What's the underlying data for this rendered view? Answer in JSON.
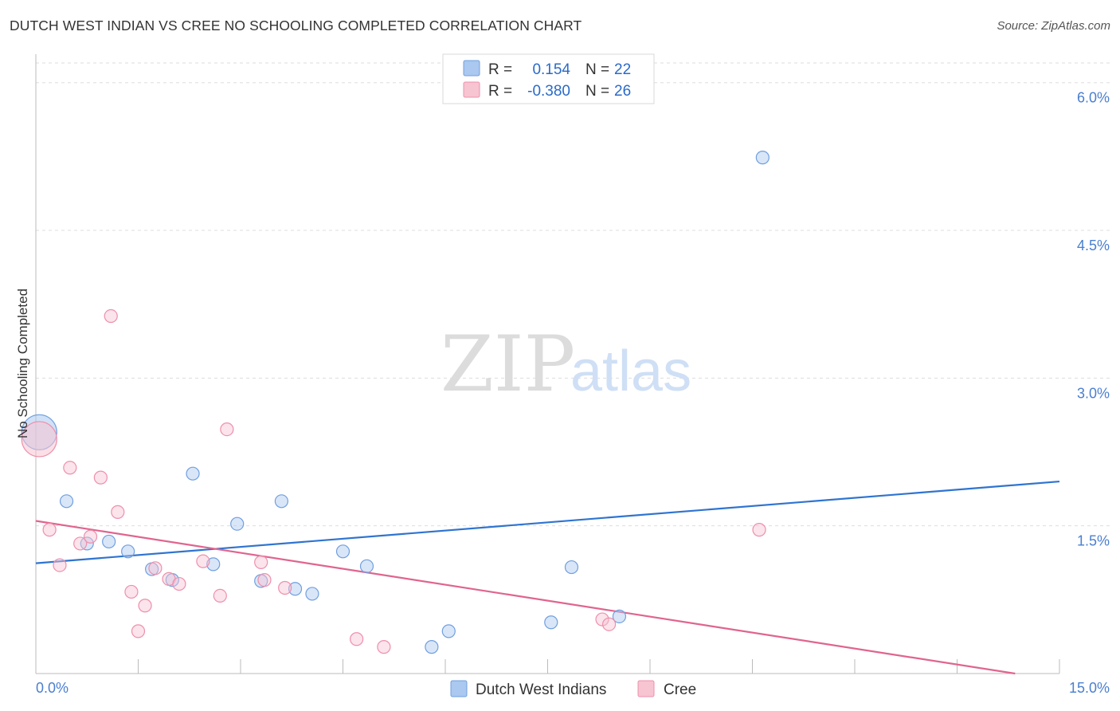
{
  "title": "DUTCH WEST INDIAN VS CREE NO SCHOOLING COMPLETED CORRELATION CHART",
  "source": "Source: ZipAtlas.com",
  "watermark": {
    "zip": "ZIP",
    "atlas": "atlas"
  },
  "legend_top": {
    "rows": [
      {
        "r_label": "R =",
        "r_value": "0.154",
        "n_label": "N =",
        "n_value": "22",
        "color": "#aac8f0",
        "stroke": "#6f9fe0"
      },
      {
        "r_label": "R =",
        "r_value": "-0.380",
        "n_label": "N =",
        "n_value": "26",
        "color": "#f7c4d2",
        "stroke": "#ee8fab"
      }
    ]
  },
  "chart_data": {
    "type": "scatter",
    "title": "DUTCH WEST INDIAN VS CREE NO SCHOOLING COMPLETED CORRELATION CHART",
    "xlabel": "",
    "ylabel": "No Schooling Completed",
    "xlim": [
      0,
      15
    ],
    "ylim": [
      0,
      6.2
    ],
    "x_tick_labels": [
      "0.0%",
      "15.0%"
    ],
    "y_ticks": [
      1.5,
      3.0,
      4.5,
      6.0
    ],
    "y_tick_labels": [
      "1.5%",
      "3.0%",
      "4.5%",
      "6.0%"
    ],
    "legend": [
      "Dutch West Indians",
      "Cree"
    ],
    "series": [
      {
        "name": "Dutch West Indians",
        "color": "#aac8f0",
        "stroke": "#6f9fe0",
        "line_color": "#2f74d0",
        "trend": {
          "x": [
            0,
            15
          ],
          "y": [
            1.12,
            1.95
          ]
        },
        "points": [
          {
            "x": 0.05,
            "y": 2.45,
            "big": true
          },
          {
            "x": 0.45,
            "y": 1.75
          },
          {
            "x": 0.75,
            "y": 1.32
          },
          {
            "x": 1.07,
            "y": 1.34
          },
          {
            "x": 1.35,
            "y": 1.24
          },
          {
            "x": 1.7,
            "y": 1.06
          },
          {
            "x": 2.0,
            "y": 0.95
          },
          {
            "x": 2.3,
            "y": 2.03
          },
          {
            "x": 2.6,
            "y": 1.11
          },
          {
            "x": 2.95,
            "y": 1.52
          },
          {
            "x": 3.3,
            "y": 0.94
          },
          {
            "x": 3.6,
            "y": 1.75
          },
          {
            "x": 3.8,
            "y": 0.86
          },
          {
            "x": 4.05,
            "y": 0.81
          },
          {
            "x": 4.5,
            "y": 1.24
          },
          {
            "x": 4.85,
            "y": 1.09
          },
          {
            "x": 5.8,
            "y": 0.27
          },
          {
            "x": 6.05,
            "y": 0.43
          },
          {
            "x": 7.55,
            "y": 0.52
          },
          {
            "x": 7.85,
            "y": 1.08
          },
          {
            "x": 8.55,
            "y": 0.58
          },
          {
            "x": 10.65,
            "y": 5.24
          }
        ]
      },
      {
        "name": "Cree",
        "color": "#f7c4d2",
        "stroke": "#ee8fab",
        "line_color": "#e0648e",
        "trend": {
          "x": [
            0,
            14.35
          ],
          "y": [
            1.55,
            0.0
          ]
        },
        "points": [
          {
            "x": 0.05,
            "y": 2.38,
            "big": true
          },
          {
            "x": 0.2,
            "y": 1.46
          },
          {
            "x": 0.35,
            "y": 1.1
          },
          {
            "x": 0.5,
            "y": 2.09
          },
          {
            "x": 0.65,
            "y": 1.32
          },
          {
            "x": 0.8,
            "y": 1.39
          },
          {
            "x": 0.95,
            "y": 1.99
          },
          {
            "x": 1.1,
            "y": 3.63
          },
          {
            "x": 1.2,
            "y": 1.64
          },
          {
            "x": 1.4,
            "y": 0.83
          },
          {
            "x": 1.5,
            "y": 0.43
          },
          {
            "x": 1.6,
            "y": 0.69
          },
          {
            "x": 1.75,
            "y": 1.07
          },
          {
            "x": 1.95,
            "y": 0.96
          },
          {
            "x": 2.1,
            "y": 0.91
          },
          {
            "x": 2.45,
            "y": 1.14
          },
          {
            "x": 2.7,
            "y": 0.79
          },
          {
            "x": 2.8,
            "y": 2.48
          },
          {
            "x": 3.3,
            "y": 1.13
          },
          {
            "x": 3.35,
            "y": 0.95
          },
          {
            "x": 3.65,
            "y": 0.87
          },
          {
            "x": 4.7,
            "y": 0.35
          },
          {
            "x": 5.1,
            "y": 0.27
          },
          {
            "x": 8.3,
            "y": 0.55
          },
          {
            "x": 8.4,
            "y": 0.5
          },
          {
            "x": 10.6,
            "y": 1.46
          }
        ]
      }
    ]
  }
}
